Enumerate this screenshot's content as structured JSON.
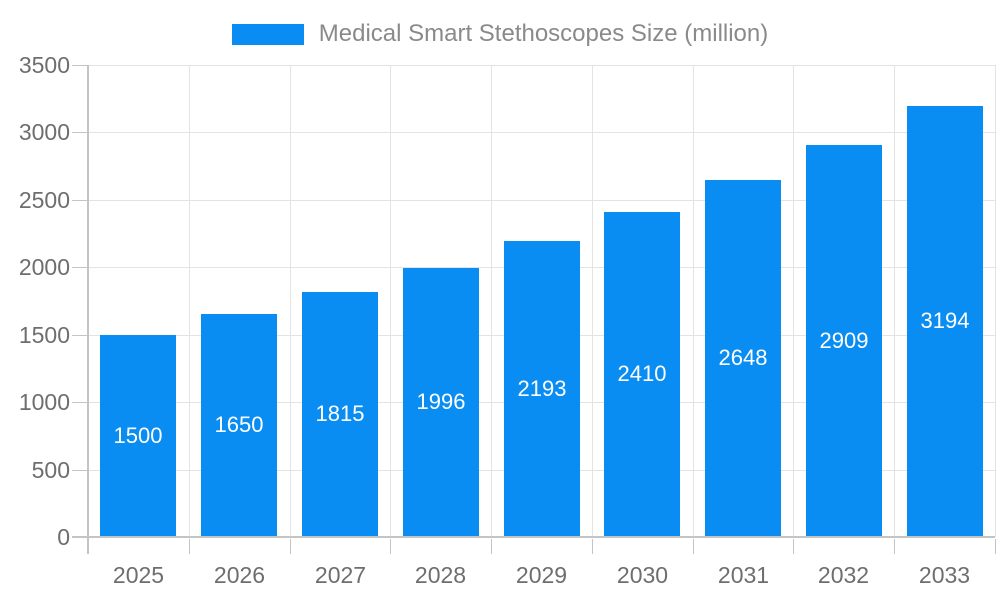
{
  "chart_data": {
    "type": "bar",
    "title": "Medical Smart Stethoscopes Size (million)",
    "series_name": "Medical Smart Stethoscopes Size (million)",
    "categories": [
      "2025",
      "2026",
      "2027",
      "2028",
      "2029",
      "2030",
      "2031",
      "2032",
      "2033"
    ],
    "values": [
      1500,
      1650,
      1815,
      1996,
      2193,
      2410,
      2648,
      2909,
      3194
    ],
    "xlabel": "",
    "ylabel": "",
    "ylim": [
      0,
      3500
    ],
    "yticks": [
      0,
      500,
      1000,
      1500,
      2000,
      2500,
      3000,
      3500
    ],
    "grid": true,
    "legend_position": "top-center",
    "data_labels_position": "inside-center",
    "bar_color": "#0a8df2",
    "bar_label_color": "#ffffff"
  },
  "legend": {
    "label": "Medical Smart Stethoscopes Size (million)",
    "swatch_color": "#0a8df2"
  },
  "colors": {
    "background": "#ffffff",
    "legend_text": "#8a8a8a",
    "axis_label": "#6e6e6e",
    "gridline": "#e3e3e3",
    "axis_line": "#c4c4c4"
  }
}
